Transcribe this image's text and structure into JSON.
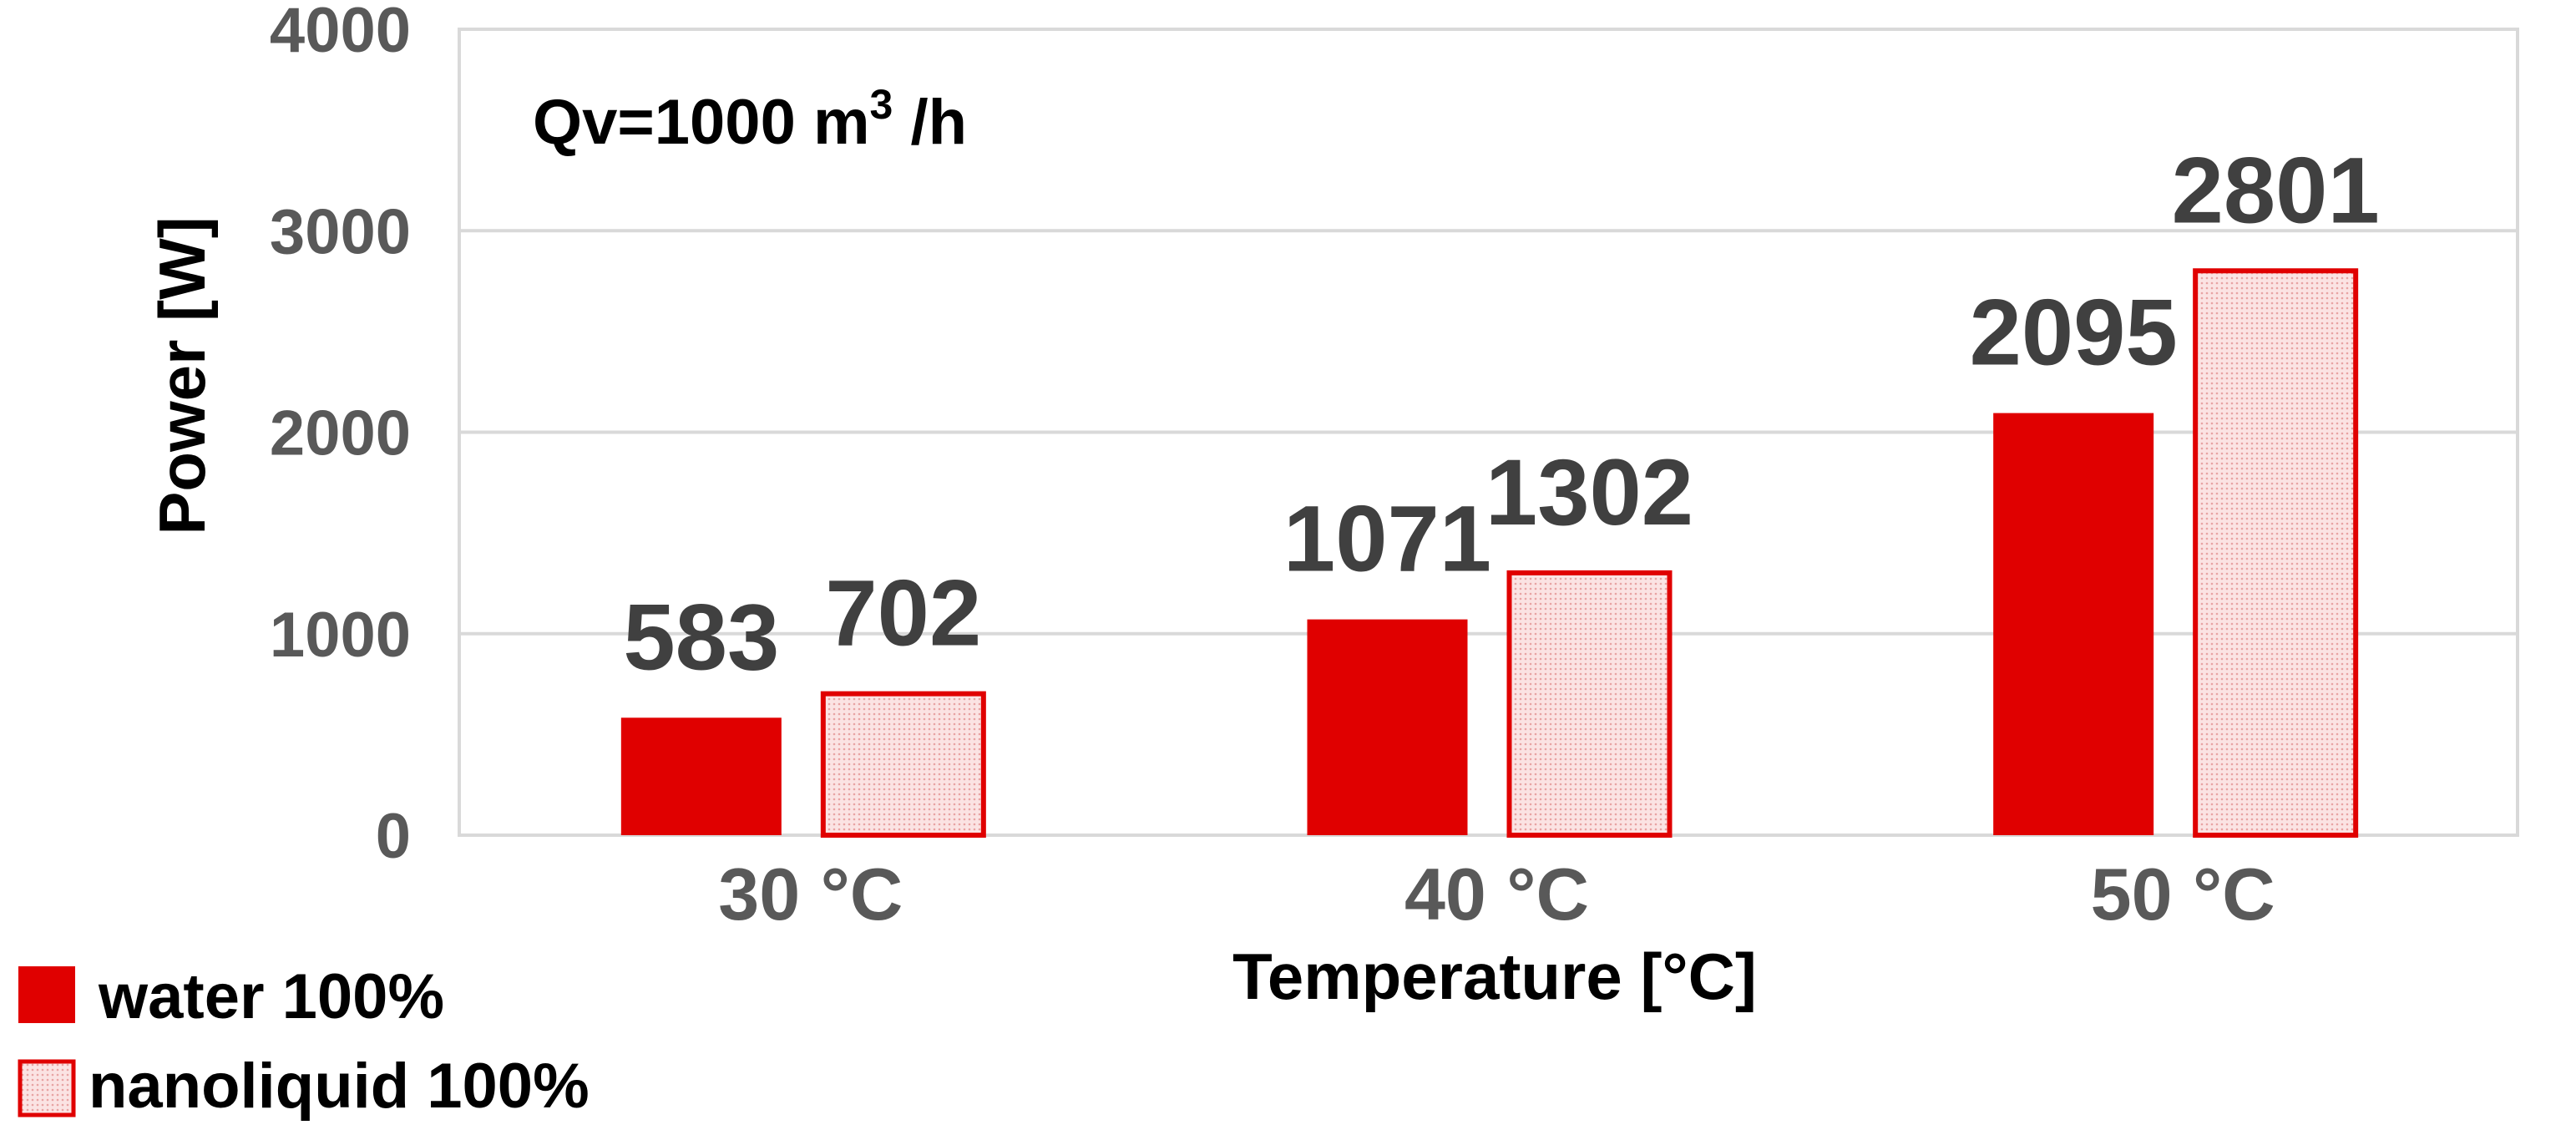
{
  "chart_data": {
    "type": "bar",
    "categories": [
      "30 °C",
      "40 °C",
      "50 °C"
    ],
    "series": [
      {
        "name": "water 100%",
        "values": [
          583,
          1071,
          2095
        ],
        "color": "#e00000",
        "fill": "solid"
      },
      {
        "name": "nanoliquid 100%",
        "values": [
          702,
          1302,
          2801
        ],
        "color": "#e00000",
        "fill": "dotted-pattern"
      }
    ],
    "xlabel": "Temperature [°C]",
    "ylabel": "Power [W]",
    "ylim": [
      0,
      4000
    ],
    "yticks": [
      0,
      1000,
      2000,
      3000,
      4000
    ],
    "annotation": {
      "main": "Qv=1000 m",
      "sup": "3",
      "tail": " /h"
    },
    "grid": true,
    "legend_position": "bottom-left"
  }
}
